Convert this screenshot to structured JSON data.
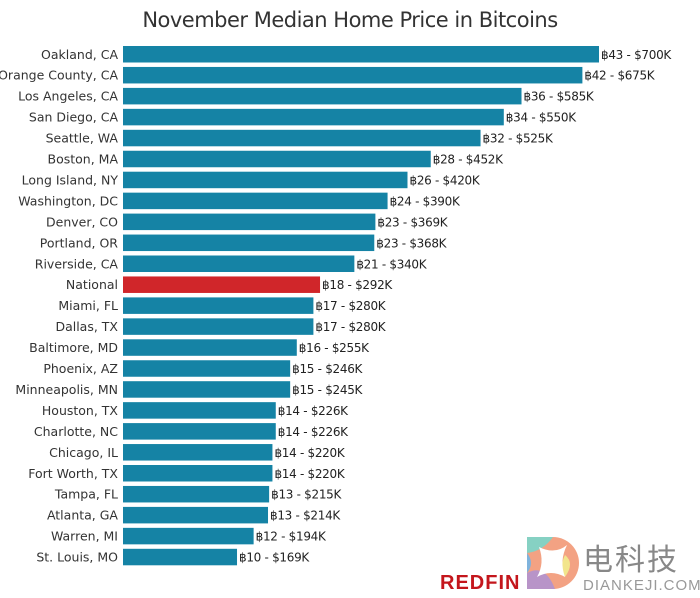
{
  "chart_data": {
    "type": "bar",
    "orientation": "horizontal",
    "title": "November Median Home Price in Bitcoins",
    "xlabel": "",
    "ylabel": "",
    "xlim": [
      0,
      43
    ],
    "grid": false,
    "categories": [
      "Oakland, CA",
      "Orange County, CA",
      "Los Angeles, CA",
      "San Diego, CA",
      "Seattle, WA",
      "Boston, MA",
      "Long Island, NY",
      "Washington, DC",
      "Denver, CO",
      "Portland, OR",
      "Riverside, CA",
      "National",
      "Miami, FL",
      "Dallas, TX",
      "Baltimore, MD",
      "Phoenix, AZ",
      "Minneapolis, MN",
      "Houston, TX",
      "Charlotte, NC",
      "Chicago, IL",
      "Fort Worth, TX",
      "Tampa, FL",
      "Atlanta, GA",
      "Warren, MI",
      "St. Louis, MO"
    ],
    "values": [
      43.0,
      41.5,
      36.0,
      34.4,
      32.3,
      27.8,
      25.7,
      23.9,
      22.8,
      22.7,
      20.9,
      17.8,
      17.2,
      17.2,
      15.7,
      15.1,
      15.1,
      13.8,
      13.8,
      13.5,
      13.5,
      13.2,
      13.1,
      11.8,
      10.3
    ],
    "data_labels": [
      "฿43 - $700K",
      "฿42 - $675K",
      "฿36 - $585K",
      "฿34 - $550K",
      "฿32 - $525K",
      "฿28 - $452K",
      "฿26 - $420K",
      "฿24 - $390K",
      "฿23 - $369K",
      "฿23 - $368K",
      "฿21 - $340K",
      "฿18 - $292K",
      "฿17 - $280K",
      "฿17 - $280K",
      "฿16 - $255K",
      "฿15 - $246K",
      "฿15 - $245K",
      "฿14 - $226K",
      "฿14 - $226K",
      "฿14 - $220K",
      "฿14 - $220K",
      "฿13 - $215K",
      "฿13 - $214K",
      "฿12 - $194K",
      "฿10 - $169K"
    ],
    "highlight": "National",
    "colors": {
      "default": "#1583a5",
      "highlight": "#d0262a"
    }
  },
  "watermark": {
    "text_cn": "电科技",
    "text_en": "DIANKEJI.COM",
    "brand": "REDFIN"
  }
}
